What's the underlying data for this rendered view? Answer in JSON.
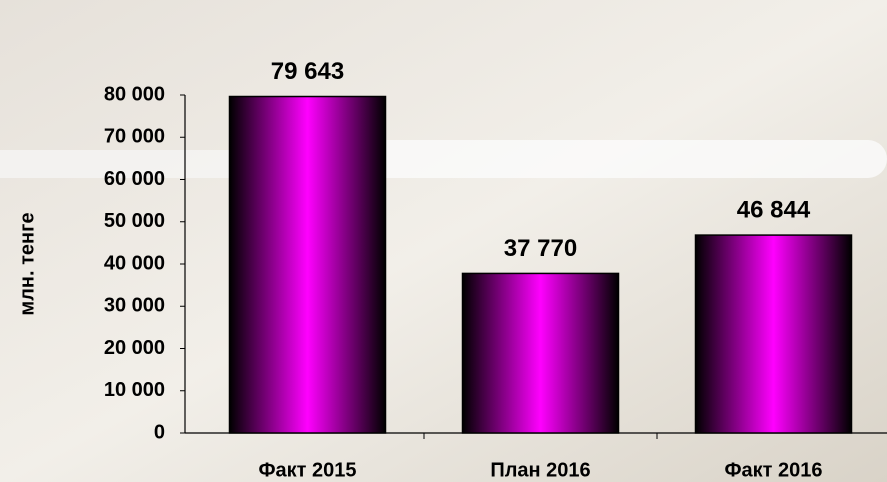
{
  "chart_data": {
    "type": "bar",
    "y_label": "млн. тенге",
    "categories": [
      "Факт 2015",
      "План 2016",
      "Факт 2016"
    ],
    "values": [
      79643,
      37770,
      46844
    ],
    "value_labels": [
      "79 643",
      "37 770",
      "46 844"
    ],
    "color": "#ff00ff",
    "ylim": [
      0,
      80000
    ],
    "yticks": [
      0,
      {
        "value": 10000,
        "label": "10 000"
      },
      {
        "value": 20000,
        "label": "20 000"
      },
      {
        "value": 30000,
        "label": "30 000"
      },
      {
        "value": 40000,
        "label": "40 000"
      },
      {
        "value": 50000,
        "label": "50 000"
      },
      {
        "value": 60000,
        "label": "60 000"
      },
      {
        "value": 70000,
        "label": "70 000"
      },
      {
        "value": 80000,
        "label": "80 000"
      }
    ],
    "grid": false
  }
}
